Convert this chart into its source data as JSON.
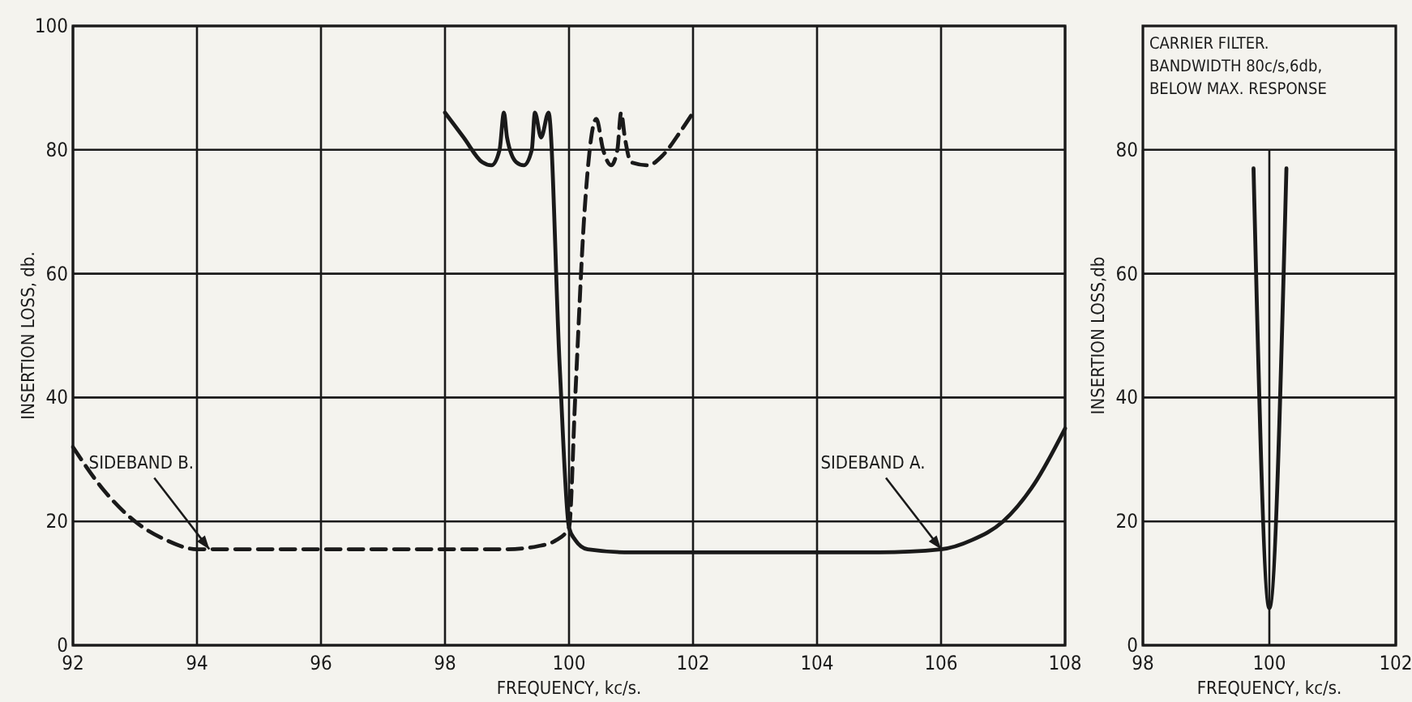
{
  "chart_data": [
    {
      "type": "line",
      "xlabel": "FREQUENCY, kc/s.",
      "ylabel": "INSERTION LOSS, db.",
      "xlim": [
        92,
        108
      ],
      "ylim": [
        0,
        100
      ],
      "xticks": [
        92,
        94,
        96,
        98,
        100,
        102,
        104,
        106,
        108
      ],
      "yticks": [
        0,
        20,
        40,
        60,
        80,
        100
      ],
      "grid": true,
      "series": [
        {
          "color": "#1a1a1a",
          "line_style": "dashed",
          "x": [
            92,
            92.5,
            93,
            93.5,
            94,
            95,
            96,
            97,
            98,
            99,
            99.5,
            99.8,
            100,
            100.1,
            100.25,
            100.44,
            100.55,
            100.68,
            100.78,
            100.84,
            100.9,
            101.0,
            101.28,
            101.5,
            101.8,
            102
          ],
          "values": [
            32,
            25,
            20,
            17,
            15.5,
            15.5,
            15.5,
            15.5,
            15.5,
            15.5,
            16,
            17,
            19,
            40,
            70,
            85,
            80,
            77.5,
            80,
            86,
            82,
            78,
            77.5,
            79,
            83,
            86
          ]
        },
        {
          "color": "#1a1a1a",
          "line_style": "solid",
          "x": [
            98,
            98.3,
            98.6,
            98.75,
            98.88,
            98.95,
            99.0,
            99.15,
            99.27,
            99.4,
            99.45,
            99.55,
            99.67,
            99.85,
            100,
            100.1,
            100.3,
            101,
            102,
            104,
            105,
            106,
            106.5,
            107,
            107.5,
            108
          ],
          "values": [
            86,
            82,
            78,
            77.5,
            80,
            86,
            82,
            78,
            77.5,
            80,
            86,
            82,
            86,
            45,
            19,
            17,
            15.5,
            15,
            15,
            15,
            15,
            15.5,
            17,
            20,
            26,
            35
          ]
        }
      ],
      "annotations": [
        {
          "text": "SIDEBAND B.",
          "x": 94.2,
          "y": 15.5
        },
        {
          "text": "SIDEBAND A.",
          "x": 106,
          "y": 15.5
        }
      ]
    },
    {
      "type": "line",
      "title": "CARRIER FILTER.\nBANDWIDTH 80c/s,6db,\nBELOW MAX. RESPONSE",
      "xlabel": "FREQUENCY, kc/s.",
      "ylabel": "INSERTION LOSS,db",
      "xlim": [
        98,
        102
      ],
      "ylim": [
        0,
        100
      ],
      "xticks": [
        98,
        100,
        102
      ],
      "yticks": [
        0,
        20,
        40,
        60,
        80
      ],
      "grid": true,
      "series": [
        {
          "color": "#1a1a1a",
          "line_style": "solid",
          "x": [
            99.75,
            100,
            100.27
          ],
          "values": [
            77,
            6,
            77
          ]
        }
      ]
    }
  ]
}
